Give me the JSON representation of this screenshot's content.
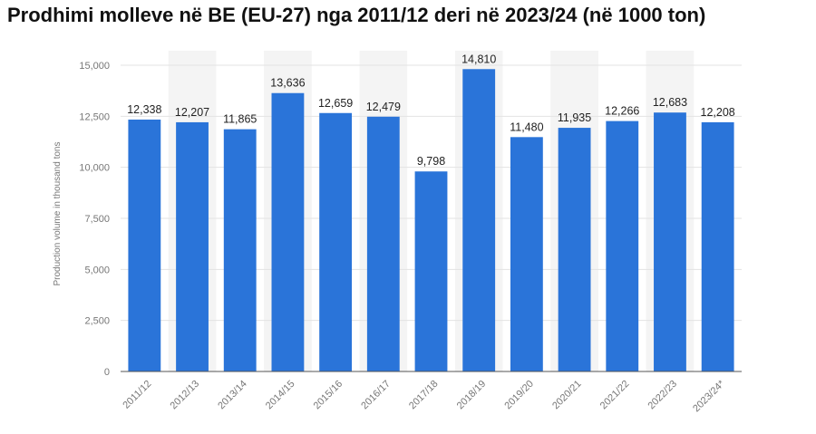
{
  "title": "Prodhimi molleve në BE (EU-27) nga 2011/12 deri në 2023/24 (në 1000 ton)",
  "colors": {
    "bar": "#2a74d9",
    "band": "#f4f4f4",
    "grid": "#e3e3e3",
    "axis": "#555555"
  },
  "chart_data": {
    "type": "bar",
    "categories": [
      "2011/12",
      "2012/13",
      "2013/14",
      "2014/15",
      "2015/16",
      "2016/17",
      "2017/18",
      "2018/19",
      "2019/20",
      "2020/21",
      "2021/22",
      "2022/23",
      "2023/24*"
    ],
    "values": [
      12338,
      12207,
      11865,
      13636,
      12659,
      12479,
      9798,
      14810,
      11480,
      11935,
      12266,
      12683,
      12208
    ],
    "value_labels": [
      "12,338",
      "12,207",
      "11,865",
      "13,636",
      "12,659",
      "12,479",
      "9,798",
      "14,810",
      "11,480",
      "11,935",
      "12,266",
      "12,683",
      "12,208"
    ],
    "ylabel": "Production volume in thousand tons",
    "ylim": [
      0,
      15000
    ],
    "yticks": [
      0,
      2500,
      5000,
      7500,
      10000,
      12500,
      15000
    ],
    "ytick_labels": [
      "0",
      "2,500",
      "5,000",
      "7,500",
      "10,000",
      "12,500",
      "15,000"
    ],
    "grid": true
  }
}
